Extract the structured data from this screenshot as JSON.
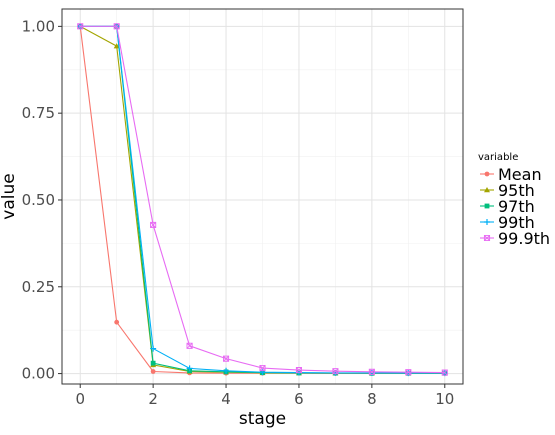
{
  "chart_data": {
    "type": "line",
    "xlabel": "stage",
    "ylabel": "value",
    "xlim": [
      -0.5,
      10.5
    ],
    "ylim": [
      -0.03,
      1.05
    ],
    "x_ticks": [
      0,
      2,
      4,
      6,
      8,
      10
    ],
    "x_minor_ticks": [
      1,
      3,
      5,
      7,
      9
    ],
    "y_ticks": [
      0,
      0.25,
      0.5,
      0.75,
      1.0
    ],
    "y_tick_labels": [
      "0.00",
      "0.25",
      "0.50",
      "0.75",
      "1.00"
    ],
    "grid": true,
    "legend": {
      "title": "variable",
      "placement": "right"
    },
    "x": [
      0,
      1,
      2,
      3,
      4,
      5,
      6,
      7,
      8,
      9,
      10
    ],
    "series": [
      {
        "name": "Mean",
        "color": "#F8766D",
        "marker": "circle",
        "values": [
          1.0,
          0.148,
          0.006,
          0.002,
          0.001,
          0.001,
          0.001,
          0.0005,
          0.0005,
          0.0003,
          0.0003
        ]
      },
      {
        "name": "95th",
        "color": "#A3A500",
        "marker": "triangle",
        "values": [
          1.0,
          0.943,
          0.025,
          0.006,
          0.004,
          0.002,
          0.0015,
          0.001,
          0.001,
          0.001,
          0.001
        ]
      },
      {
        "name": "97th",
        "color": "#00BF7D",
        "marker": "square",
        "values": [
          1.0,
          1.0,
          0.03,
          0.008,
          0.005,
          0.003,
          0.002,
          0.0015,
          0.001,
          0.001,
          0.001
        ]
      },
      {
        "name": "99th",
        "color": "#00B0F6",
        "marker": "plus",
        "values": [
          1.0,
          1.0,
          0.072,
          0.015,
          0.008,
          0.004,
          0.003,
          0.002,
          0.002,
          0.0015,
          0.0015
        ]
      },
      {
        "name": "99.9th",
        "color": "#E76BF3",
        "marker": "boxx",
        "values": [
          1.0,
          1.0,
          0.428,
          0.08,
          0.043,
          0.016,
          0.01,
          0.007,
          0.005,
          0.004,
          0.003
        ]
      }
    ]
  }
}
